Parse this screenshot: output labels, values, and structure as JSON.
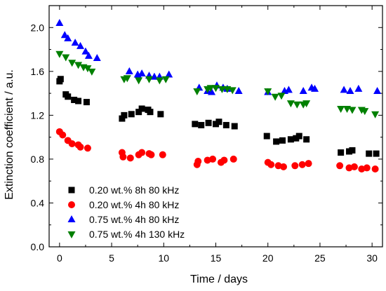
{
  "chart_data": {
    "type": "scatter",
    "xlabel": "Time / days",
    "ylabel": "Extinction coefficient / a.u.",
    "xlim": [
      -1,
      31
    ],
    "ylim": [
      0.0,
      2.2
    ],
    "x_ticks": [
      0,
      5,
      10,
      15,
      20,
      25,
      30
    ],
    "x_tick_labels": [
      "0",
      "5",
      "10",
      "15",
      "20",
      "25",
      "30"
    ],
    "y_ticks": [
      0.0,
      0.4,
      0.8,
      1.2,
      1.6,
      2.0
    ],
    "y_tick_labels": [
      "0.0",
      "0.4",
      "0.8",
      "1.2",
      "1.6",
      "2.0"
    ],
    "grid": false,
    "legend_position": "bottom-left",
    "series": [
      {
        "name": "0.20 wt.% 8h 80 kHz",
        "color": "#000000",
        "marker": "square",
        "points": [
          [
            0.0,
            1.51
          ],
          [
            0.1,
            1.53
          ],
          [
            0.6,
            1.39
          ],
          [
            0.8,
            1.37
          ],
          [
            1.4,
            1.34
          ],
          [
            1.8,
            1.33
          ],
          [
            2.6,
            1.32
          ],
          [
            6.0,
            1.17
          ],
          [
            6.2,
            1.2
          ],
          [
            6.9,
            1.21
          ],
          [
            7.6,
            1.23
          ],
          [
            7.9,
            1.26
          ],
          [
            8.5,
            1.25
          ],
          [
            8.7,
            1.23
          ],
          [
            9.7,
            1.21
          ],
          [
            13.0,
            1.12
          ],
          [
            13.6,
            1.11
          ],
          [
            14.3,
            1.13
          ],
          [
            15.0,
            1.12
          ],
          [
            15.3,
            1.14
          ],
          [
            16.0,
            1.11
          ],
          [
            16.8,
            1.1
          ],
          [
            19.9,
            1.01
          ],
          [
            20.8,
            0.96
          ],
          [
            21.4,
            0.97
          ],
          [
            22.2,
            0.98
          ],
          [
            22.7,
            0.99
          ],
          [
            23.0,
            1.01
          ],
          [
            23.7,
            0.98
          ],
          [
            27.0,
            0.86
          ],
          [
            27.8,
            0.87
          ],
          [
            28.1,
            0.88
          ],
          [
            29.7,
            0.85
          ],
          [
            30.4,
            0.85
          ]
        ]
      },
      {
        "name": "0.20 wt.% 4h 80 kHz",
        "color": "#ff0000",
        "marker": "circle",
        "points": [
          [
            0.0,
            1.05
          ],
          [
            0.3,
            1.02
          ],
          [
            0.8,
            0.97
          ],
          [
            1.2,
            0.94
          ],
          [
            1.8,
            0.93
          ],
          [
            2.0,
            0.91
          ],
          [
            2.7,
            0.9
          ],
          [
            6.0,
            0.86
          ],
          [
            6.1,
            0.82
          ],
          [
            6.8,
            0.81
          ],
          [
            7.6,
            0.84
          ],
          [
            7.9,
            0.86
          ],
          [
            8.6,
            0.85
          ],
          [
            8.8,
            0.84
          ],
          [
            9.9,
            0.84
          ],
          [
            13.2,
            0.75
          ],
          [
            13.3,
            0.78
          ],
          [
            14.2,
            0.79
          ],
          [
            14.7,
            0.8
          ],
          [
            15.5,
            0.77
          ],
          [
            15.8,
            0.79
          ],
          [
            16.7,
            0.8
          ],
          [
            20.0,
            0.77
          ],
          [
            20.3,
            0.75
          ],
          [
            21.0,
            0.74
          ],
          [
            21.5,
            0.73
          ],
          [
            22.6,
            0.74
          ],
          [
            23.3,
            0.75
          ],
          [
            23.9,
            0.76
          ],
          [
            26.9,
            0.74
          ],
          [
            27.8,
            0.72
          ],
          [
            28.3,
            0.73
          ],
          [
            29.0,
            0.71
          ],
          [
            29.5,
            0.72
          ],
          [
            30.3,
            0.71
          ]
        ]
      },
      {
        "name": "0.75 wt.% 4h 80 kHz",
        "color": "#0000ff",
        "marker": "triangle-up",
        "points": [
          [
            0.0,
            2.04
          ],
          [
            0.5,
            1.93
          ],
          [
            0.8,
            1.9
          ],
          [
            1.5,
            1.86
          ],
          [
            2.0,
            1.83
          ],
          [
            2.5,
            1.78
          ],
          [
            2.8,
            1.74
          ],
          [
            3.6,
            1.72
          ],
          [
            6.7,
            1.6
          ],
          [
            7.5,
            1.57
          ],
          [
            7.9,
            1.58
          ],
          [
            8.6,
            1.56
          ],
          [
            9.1,
            1.55
          ],
          [
            9.6,
            1.55
          ],
          [
            10.5,
            1.57
          ],
          [
            13.4,
            1.45
          ],
          [
            14.2,
            1.42
          ],
          [
            14.6,
            1.41
          ],
          [
            15.1,
            1.47
          ],
          [
            15.7,
            1.45
          ],
          [
            16.1,
            1.44
          ],
          [
            17.2,
            1.42
          ],
          [
            20.0,
            1.41
          ],
          [
            21.6,
            1.42
          ],
          [
            22.0,
            1.43
          ],
          [
            23.4,
            1.42
          ],
          [
            24.2,
            1.45
          ],
          [
            24.5,
            1.44
          ],
          [
            27.3,
            1.43
          ],
          [
            27.9,
            1.42
          ],
          [
            28.7,
            1.44
          ],
          [
            30.5,
            1.42
          ]
        ]
      },
      {
        "name": "0.75 wt.% 4h 130 kHz",
        "color": "#008000",
        "marker": "triangle-down",
        "points": [
          [
            0.0,
            1.76
          ],
          [
            0.6,
            1.73
          ],
          [
            1.2,
            1.68
          ],
          [
            1.8,
            1.66
          ],
          [
            2.3,
            1.64
          ],
          [
            2.7,
            1.63
          ],
          [
            3.1,
            1.6
          ],
          [
            6.2,
            1.53
          ],
          [
            6.5,
            1.54
          ],
          [
            7.6,
            1.52
          ],
          [
            8.6,
            1.53
          ],
          [
            9.6,
            1.52
          ],
          [
            10.2,
            1.53
          ],
          [
            13.2,
            1.42
          ],
          [
            14.2,
            1.44
          ],
          [
            14.5,
            1.45
          ],
          [
            15.0,
            1.45
          ],
          [
            15.6,
            1.44
          ],
          [
            16.1,
            1.44
          ],
          [
            16.6,
            1.43
          ],
          [
            20.0,
            1.42
          ],
          [
            20.7,
            1.37
          ],
          [
            21.3,
            1.38
          ],
          [
            22.2,
            1.31
          ],
          [
            22.8,
            1.3
          ],
          [
            23.4,
            1.3
          ],
          [
            23.7,
            1.31
          ],
          [
            27.0,
            1.26
          ],
          [
            27.6,
            1.26
          ],
          [
            28.1,
            1.25
          ],
          [
            29.0,
            1.25
          ],
          [
            29.3,
            1.24
          ],
          [
            30.3,
            1.21
          ]
        ]
      }
    ]
  }
}
